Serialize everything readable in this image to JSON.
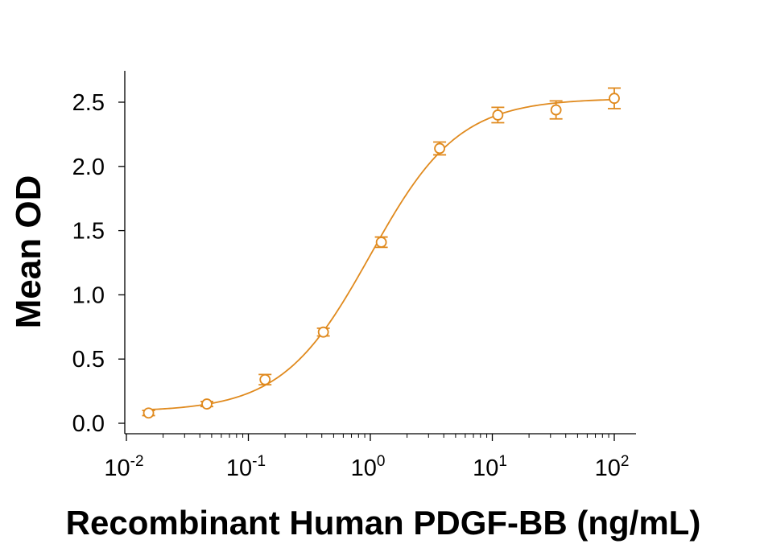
{
  "chart_data": {
    "type": "scatter",
    "title": "",
    "xlabel": "Recombinant Human PDGF-BB (ng/mL)",
    "ylabel": "Mean OD",
    "x_scale": "log",
    "xlim": [
      0.01,
      100
    ],
    "ylim": [
      0,
      2.7
    ],
    "x_ticks": [
      {
        "base": "10",
        "exp": "-2",
        "value": 0.01
      },
      {
        "base": "10",
        "exp": "-1",
        "value": 0.1
      },
      {
        "base": "10",
        "exp": "0",
        "value": 1
      },
      {
        "base": "10",
        "exp": "1",
        "value": 10
      },
      {
        "base": "10",
        "exp": "2",
        "value": 100
      }
    ],
    "y_ticks": [
      "0.0",
      "0.5",
      "1.0",
      "1.5",
      "2.0",
      "2.5"
    ],
    "grid": false,
    "color": "#E08A1E",
    "series": [
      {
        "x": [
          0.0152,
          0.0457,
          0.137,
          0.412,
          1.23,
          3.7,
          11.1,
          33.3,
          100
        ],
        "y": [
          0.08,
          0.15,
          0.34,
          0.71,
          1.41,
          2.14,
          2.4,
          2.44,
          2.53
        ],
        "error": [
          0.02,
          0.02,
          0.04,
          0.03,
          0.04,
          0.05,
          0.06,
          0.07,
          0.08
        ],
        "marker": "open-circle"
      }
    ],
    "fit": {
      "type": "4-parameter logistic",
      "bottom": 0.09,
      "top": 2.53,
      "ec50": 1.0,
      "hill": 1.2
    }
  }
}
